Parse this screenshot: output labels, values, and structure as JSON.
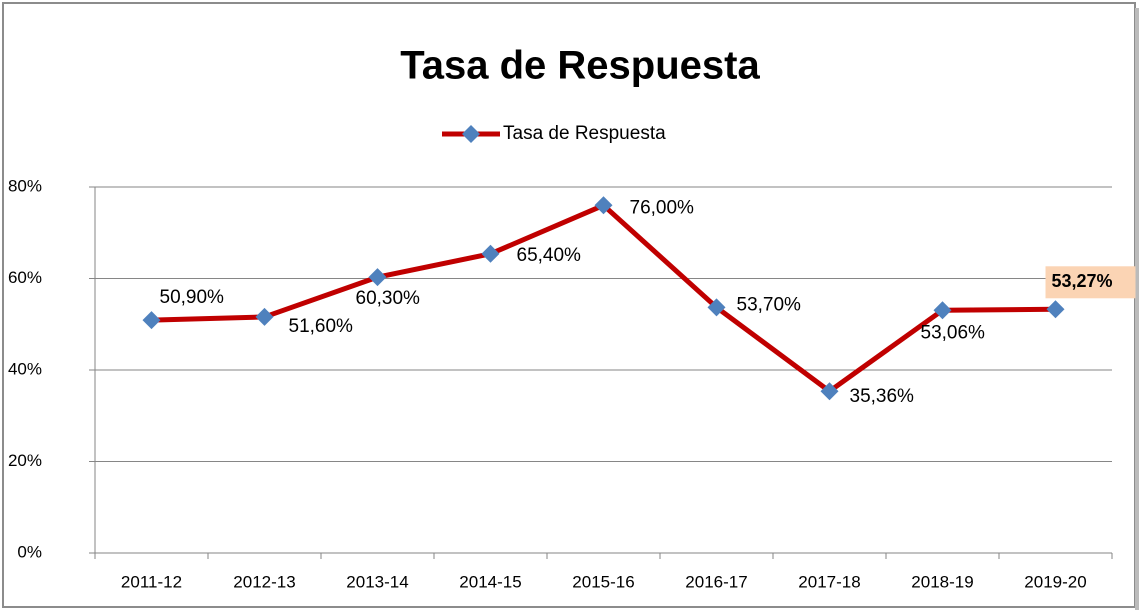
{
  "chart_data": {
    "type": "line",
    "title": "Tasa de Respuesta",
    "categories": [
      "2011-12",
      "2012-13",
      "2013-14",
      "2014-15",
      "2015-16",
      "2016-17",
      "2017-18",
      "2018-19",
      "2019-20"
    ],
    "series": [
      {
        "name": "Tasa de Respuesta",
        "color": "#c00000",
        "marker_color": "#4f81bd",
        "values": [
          50.9,
          51.6,
          60.3,
          65.4,
          76.0,
          53.7,
          35.36,
          53.06,
          53.27
        ],
        "value_labels": [
          "50,90%",
          "51,60%",
          "60,30%",
          "65,40%",
          "76,00%",
          "53,70%",
          "35,36%",
          "53,06%",
          "53,27%"
        ]
      }
    ],
    "ylim": [
      0,
      80
    ],
    "yticks": [
      {
        "value": 0,
        "label": "0%"
      },
      {
        "value": 20,
        "label": "20%"
      },
      {
        "value": 40,
        "label": "40%"
      },
      {
        "value": 60,
        "label": "60%"
      },
      {
        "value": 80,
        "label": "80%"
      }
    ],
    "grid": true,
    "legend": "top",
    "highlight": {
      "index": 8,
      "color": "#fbd4b4"
    }
  }
}
